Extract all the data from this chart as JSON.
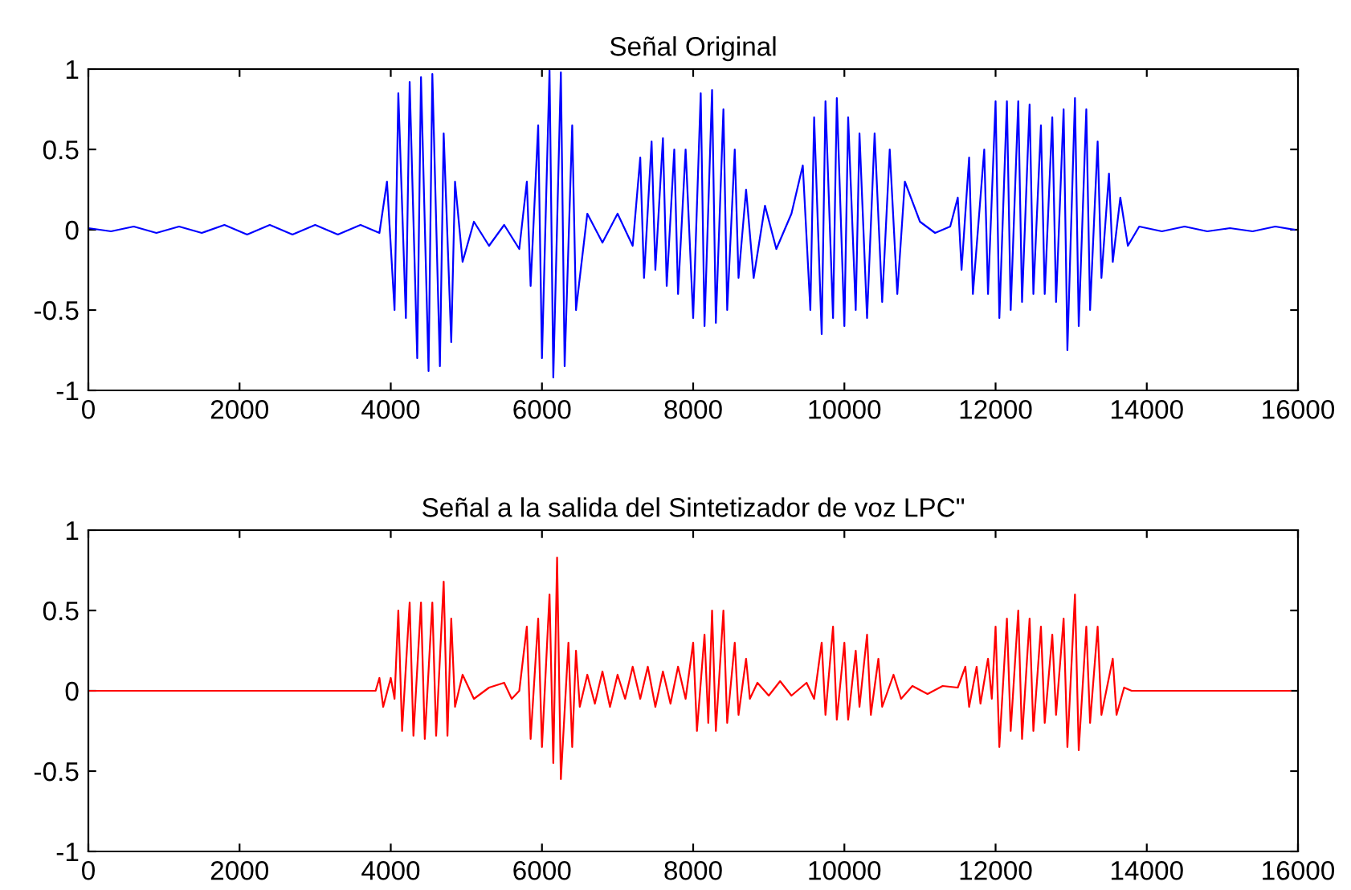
{
  "chart_data": [
    {
      "type": "line",
      "title": "Señal Original",
      "xlim": [
        0,
        16000
      ],
      "ylim": [
        -1,
        1
      ],
      "xticks": [
        0,
        2000,
        4000,
        6000,
        8000,
        10000,
        12000,
        14000,
        16000
      ],
      "yticks": [
        -1,
        -0.5,
        0,
        0.5,
        1
      ],
      "grid": false,
      "legend": false,
      "series": [
        {
          "color": "#0000ff",
          "x": [
            0,
            300,
            600,
            900,
            1200,
            1500,
            1800,
            2100,
            2400,
            2700,
            3000,
            3300,
            3600,
            3850,
            3950,
            4050,
            4100,
            4200,
            4250,
            4350,
            4400,
            4500,
            4550,
            4650,
            4700,
            4800,
            4850,
            4950,
            5100,
            5300,
            5500,
            5700,
            5800,
            5850,
            5950,
            6000,
            6100,
            6150,
            6250,
            6300,
            6400,
            6450,
            6600,
            6800,
            7000,
            7200,
            7300,
            7350,
            7450,
            7500,
            7600,
            7650,
            7750,
            7800,
            7900,
            8000,
            8100,
            8150,
            8250,
            8300,
            8400,
            8450,
            8550,
            8600,
            8700,
            8800,
            8950,
            9100,
            9300,
            9450,
            9550,
            9600,
            9700,
            9750,
            9850,
            9900,
            10000,
            10050,
            10150,
            10200,
            10300,
            10400,
            10500,
            10600,
            10700,
            10800,
            11000,
            11200,
            11400,
            11500,
            11550,
            11650,
            11700,
            11850,
            11900,
            12000,
            12050,
            12150,
            12200,
            12300,
            12350,
            12450,
            12500,
            12600,
            12650,
            12750,
            12800,
            12900,
            12950,
            13050,
            13100,
            13200,
            13250,
            13350,
            13400,
            13500,
            13550,
            13650,
            13750,
            13900,
            14200,
            14500,
            14800,
            15100,
            15400,
            15700,
            15950
          ],
          "values": [
            0.01,
            -0.01,
            0.02,
            -0.02,
            0.02,
            -0.02,
            0.03,
            -0.03,
            0.03,
            -0.03,
            0.03,
            -0.03,
            0.03,
            -0.02,
            0.3,
            -0.5,
            0.85,
            -0.55,
            0.92,
            -0.8,
            0.95,
            -0.88,
            0.97,
            -0.85,
            0.6,
            -0.7,
            0.3,
            -0.2,
            0.05,
            -0.1,
            0.03,
            -0.12,
            0.3,
            -0.35,
            0.65,
            -0.8,
            1.0,
            -0.92,
            0.98,
            -0.85,
            0.65,
            -0.5,
            0.1,
            -0.08,
            0.1,
            -0.1,
            0.45,
            -0.3,
            0.55,
            -0.25,
            0.57,
            -0.35,
            0.5,
            -0.4,
            0.5,
            -0.55,
            0.85,
            -0.6,
            0.87,
            -0.58,
            0.75,
            -0.5,
            0.5,
            -0.3,
            0.25,
            -0.3,
            0.15,
            -0.12,
            0.1,
            0.4,
            -0.5,
            0.7,
            -0.65,
            0.8,
            -0.55,
            0.82,
            -0.6,
            0.7,
            -0.5,
            0.6,
            -0.55,
            0.6,
            -0.45,
            0.5,
            -0.4,
            0.3,
            0.05,
            -0.02,
            0.02,
            0.2,
            -0.25,
            0.45,
            -0.4,
            0.5,
            -0.4,
            0.8,
            -0.55,
            0.8,
            -0.5,
            0.8,
            -0.45,
            0.78,
            -0.4,
            0.65,
            -0.4,
            0.7,
            -0.45,
            0.75,
            -0.75,
            0.82,
            -0.6,
            0.75,
            -0.5,
            0.55,
            -0.3,
            0.35,
            -0.2,
            0.2,
            -0.1,
            0.02,
            -0.01,
            0.02,
            -0.01,
            0.01,
            -0.01,
            0.02,
            0.0
          ]
        }
      ]
    },
    {
      "type": "line",
      "title": "Señal a la salida del Sintetizador de voz LPC\"",
      "xlim": [
        0,
        16000
      ],
      "ylim": [
        -1,
        1
      ],
      "xticks": [
        0,
        2000,
        4000,
        6000,
        8000,
        10000,
        12000,
        14000,
        16000
      ],
      "yticks": [
        -1,
        -0.5,
        0,
        0.5,
        1
      ],
      "grid": false,
      "legend": false,
      "series": [
        {
          "color": "#ff0000",
          "x": [
            0,
            1000,
            2000,
            3000,
            3800,
            3850,
            3900,
            4000,
            4050,
            4100,
            4150,
            4250,
            4300,
            4400,
            4450,
            4550,
            4600,
            4700,
            4750,
            4800,
            4850,
            4950,
            5100,
            5300,
            5500,
            5600,
            5700,
            5800,
            5850,
            5950,
            6000,
            6100,
            6150,
            6200,
            6250,
            6350,
            6400,
            6450,
            6500,
            6600,
            6700,
            6800,
            6900,
            7000,
            7100,
            7200,
            7300,
            7400,
            7500,
            7600,
            7700,
            7800,
            7900,
            8000,
            8050,
            8150,
            8200,
            8250,
            8300,
            8400,
            8450,
            8550,
            8600,
            8700,
            8750,
            8850,
            9000,
            9150,
            9300,
            9500,
            9600,
            9700,
            9750,
            9850,
            9900,
            10000,
            10050,
            10150,
            10200,
            10300,
            10350,
            10450,
            10500,
            10650,
            10750,
            10900,
            11100,
            11300,
            11500,
            11600,
            11650,
            11750,
            11800,
            11900,
            11950,
            12000,
            12050,
            12150,
            12200,
            12300,
            12350,
            12450,
            12500,
            12600,
            12650,
            12750,
            12800,
            12900,
            12950,
            13050,
            13100,
            13200,
            13250,
            13350,
            13400,
            13550,
            13600,
            13700,
            13800,
            14500,
            15000,
            15900
          ],
          "values": [
            0.0,
            0.0,
            0.0,
            0.0,
            0.0,
            0.08,
            -0.1,
            0.08,
            -0.05,
            0.5,
            -0.25,
            0.55,
            -0.28,
            0.55,
            -0.3,
            0.55,
            -0.28,
            0.68,
            -0.28,
            0.45,
            -0.1,
            0.1,
            -0.05,
            0.02,
            0.05,
            -0.05,
            0.0,
            0.4,
            -0.3,
            0.45,
            -0.35,
            0.6,
            -0.45,
            0.83,
            -0.55,
            0.3,
            -0.35,
            0.25,
            -0.1,
            0.1,
            -0.08,
            0.12,
            -0.1,
            0.1,
            -0.05,
            0.15,
            -0.05,
            0.15,
            -0.1,
            0.12,
            -0.08,
            0.15,
            -0.05,
            0.3,
            -0.25,
            0.35,
            -0.2,
            0.5,
            -0.25,
            0.5,
            -0.2,
            0.3,
            -0.15,
            0.2,
            -0.05,
            0.05,
            -0.03,
            0.06,
            -0.03,
            0.05,
            -0.05,
            0.3,
            -0.15,
            0.4,
            -0.18,
            0.3,
            -0.18,
            0.25,
            -0.1,
            0.35,
            -0.15,
            0.2,
            -0.1,
            0.1,
            -0.05,
            0.03,
            -0.02,
            0.03,
            0.02,
            0.15,
            -0.1,
            0.15,
            -0.08,
            0.2,
            -0.05,
            0.4,
            -0.35,
            0.45,
            -0.25,
            0.5,
            -0.3,
            0.45,
            -0.25,
            0.4,
            -0.2,
            0.35,
            -0.15,
            0.45,
            -0.35,
            0.6,
            -0.37,
            0.4,
            -0.2,
            0.4,
            -0.15,
            0.2,
            -0.15,
            0.02,
            0.0,
            0.0,
            0.0,
            0.0
          ]
        }
      ]
    }
  ]
}
